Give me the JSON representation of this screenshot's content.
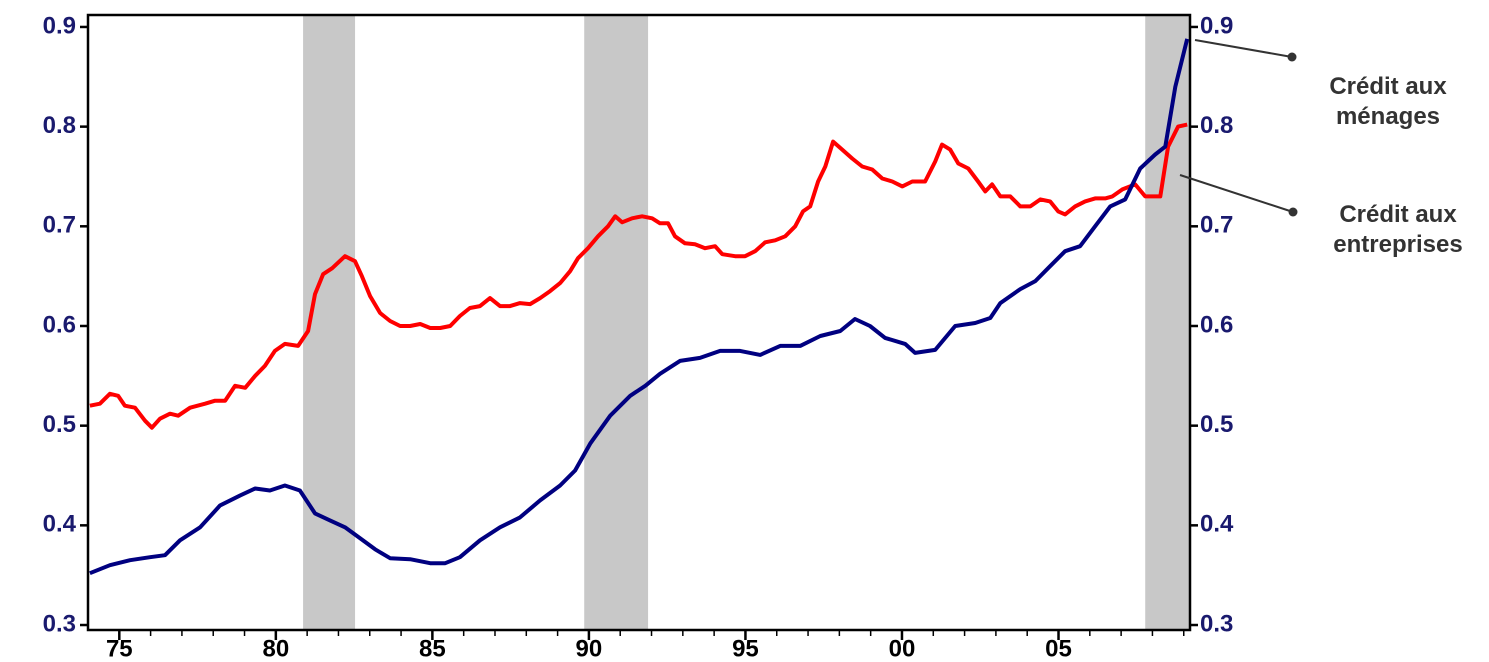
{
  "chart_data": {
    "type": "line",
    "xlim": [
      1974.0,
      2009.2
    ],
    "xticks": [
      {
        "value": 1975,
        "label": "75"
      },
      {
        "value": 1980,
        "label": "80"
      },
      {
        "value": 1985,
        "label": "85"
      },
      {
        "value": 1990,
        "label": "90"
      },
      {
        "value": 1995,
        "label": "95"
      },
      {
        "value": 2000,
        "label": "00"
      },
      {
        "value": 2005,
        "label": "05"
      }
    ],
    "x_minor_ticks": [
      1975,
      1976,
      1977,
      1978,
      1979,
      1980,
      1981,
      1982,
      1983,
      1984,
      1985,
      1986,
      1987,
      1988,
      1989,
      1990,
      1991,
      1992,
      1993,
      1994,
      1995,
      1996,
      1997,
      1998,
      1999,
      2000,
      2001,
      2002,
      2003,
      2004,
      2005,
      2006,
      2007,
      2008,
      2009
    ],
    "ylim": [
      0.295,
      0.912
    ],
    "yticks": [
      0.3,
      0.4,
      0.5,
      0.6,
      0.7,
      0.8,
      0.9
    ],
    "y2lim": [
      0.295,
      0.912
    ],
    "y2ticks": [
      0.3,
      0.4,
      0.5,
      0.6,
      0.7,
      0.8,
      0.9
    ],
    "shaded_periods": [
      [
        1980.87,
        1982.53
      ],
      [
        1989.85,
        1991.89
      ],
      [
        2007.77,
        2009.2
      ]
    ],
    "shade_color": "#c8c8c8",
    "series": [
      {
        "name": "Crédit aux ménages",
        "color": "#000080",
        "x": [
          1974.06,
          1974.7,
          1975.34,
          1975.98,
          1976.46,
          1976.94,
          1977.58,
          1978.22,
          1978.86,
          1979.34,
          1979.81,
          1980.29,
          1980.77,
          1981.25,
          1981.73,
          1982.21,
          1982.69,
          1983.17,
          1983.65,
          1984.29,
          1984.93,
          1985.41,
          1985.88,
          1986.52,
          1987.16,
          1987.8,
          1988.44,
          1989.08,
          1989.56,
          1990.04,
          1990.68,
          1991.32,
          1991.8,
          1992.27,
          1992.91,
          1993.55,
          1994.19,
          1994.83,
          1995.47,
          1996.11,
          1996.75,
          1997.39,
          1998.03,
          1998.5,
          1998.98,
          1999.46,
          2000.1,
          2000.42,
          2001.06,
          2001.7,
          2002.34,
          2002.82,
          2003.14,
          2003.78,
          2004.26,
          2004.73,
          2005.21,
          2005.69,
          2006.17,
          2006.65,
          2007.13,
          2007.61,
          2008.09,
          2008.41,
          2008.73,
          2009.11
        ],
        "values": [
          0.352,
          0.36,
          0.365,
          0.368,
          0.37,
          0.385,
          0.398,
          0.42,
          0.43,
          0.437,
          0.435,
          0.44,
          0.435,
          0.412,
          0.405,
          0.398,
          0.387,
          0.376,
          0.367,
          0.366,
          0.362,
          0.362,
          0.368,
          0.385,
          0.398,
          0.408,
          0.425,
          0.44,
          0.455,
          0.482,
          0.51,
          0.53,
          0.54,
          0.552,
          0.565,
          0.568,
          0.575,
          0.575,
          0.571,
          0.58,
          0.58,
          0.59,
          0.595,
          0.607,
          0.6,
          0.588,
          0.582,
          0.573,
          0.576,
          0.6,
          0.603,
          0.608,
          0.623,
          0.637,
          0.645,
          0.66,
          0.675,
          0.68,
          0.7,
          0.72,
          0.727,
          0.758,
          0.772,
          0.78,
          0.84,
          0.888
        ]
      },
      {
        "name": "Crédit aux entreprises",
        "color": "#ff0000",
        "x": [
          1974.06,
          1974.38,
          1974.7,
          1974.96,
          1975.18,
          1975.5,
          1975.82,
          1976.04,
          1976.3,
          1976.62,
          1976.88,
          1977.26,
          1977.74,
          1978.06,
          1978.38,
          1978.7,
          1979.02,
          1979.34,
          1979.65,
          1979.97,
          1980.29,
          1980.71,
          1981.03,
          1981.25,
          1981.51,
          1981.8,
          1982.21,
          1982.53,
          1982.75,
          1983.01,
          1983.33,
          1983.65,
          1983.97,
          1984.29,
          1984.61,
          1984.93,
          1985.25,
          1985.57,
          1985.88,
          1986.2,
          1986.52,
          1986.84,
          1987.16,
          1987.48,
          1987.8,
          1988.12,
          1988.44,
          1988.76,
          1989.08,
          1989.4,
          1989.65,
          1989.97,
          1990.29,
          1990.61,
          1990.84,
          1991.06,
          1991.38,
          1991.7,
          1992.02,
          1992.27,
          1992.53,
          1992.75,
          1993.07,
          1993.39,
          1993.71,
          1994.03,
          1994.26,
          1994.67,
          1994.99,
          1995.31,
          1995.63,
          1995.95,
          1996.27,
          1996.59,
          1996.84,
          1997.07,
          1997.32,
          1997.55,
          1997.8,
          1998.09,
          1998.41,
          1998.73,
          1999.05,
          1999.37,
          1999.69,
          2000.01,
          2000.33,
          2000.74,
          2001.06,
          2001.28,
          2001.54,
          2001.8,
          2002.12,
          2002.43,
          2002.66,
          2002.88,
          2003.14,
          2003.46,
          2003.78,
          2004.1,
          2004.42,
          2004.73,
          2004.99,
          2005.21,
          2005.53,
          2005.85,
          2006.17,
          2006.49,
          2006.72,
          2007.04,
          2007.45,
          2007.77,
          2008.25,
          2008.5,
          2008.82,
          2009.11
        ],
        "values": [
          0.52,
          0.522,
          0.532,
          0.53,
          0.52,
          0.518,
          0.505,
          0.498,
          0.507,
          0.512,
          0.51,
          0.518,
          0.522,
          0.525,
          0.525,
          0.54,
          0.538,
          0.55,
          0.56,
          0.575,
          0.582,
          0.58,
          0.595,
          0.632,
          0.652,
          0.658,
          0.67,
          0.665,
          0.65,
          0.63,
          0.613,
          0.605,
          0.6,
          0.6,
          0.602,
          0.598,
          0.598,
          0.6,
          0.61,
          0.618,
          0.62,
          0.628,
          0.62,
          0.62,
          0.623,
          0.622,
          0.628,
          0.635,
          0.643,
          0.655,
          0.668,
          0.678,
          0.69,
          0.7,
          0.71,
          0.704,
          0.708,
          0.71,
          0.708,
          0.703,
          0.703,
          0.69,
          0.683,
          0.682,
          0.678,
          0.68,
          0.672,
          0.67,
          0.67,
          0.675,
          0.684,
          0.686,
          0.69,
          0.7,
          0.715,
          0.72,
          0.745,
          0.76,
          0.785,
          0.777,
          0.768,
          0.76,
          0.757,
          0.748,
          0.745,
          0.74,
          0.745,
          0.745,
          0.765,
          0.782,
          0.777,
          0.763,
          0.758,
          0.745,
          0.735,
          0.742,
          0.73,
          0.73,
          0.72,
          0.72,
          0.727,
          0.725,
          0.715,
          0.712,
          0.72,
          0.725,
          0.728,
          0.728,
          0.73,
          0.737,
          0.742,
          0.73,
          0.73,
          0.78,
          0.8,
          0.802
        ]
      }
    ]
  }
}
